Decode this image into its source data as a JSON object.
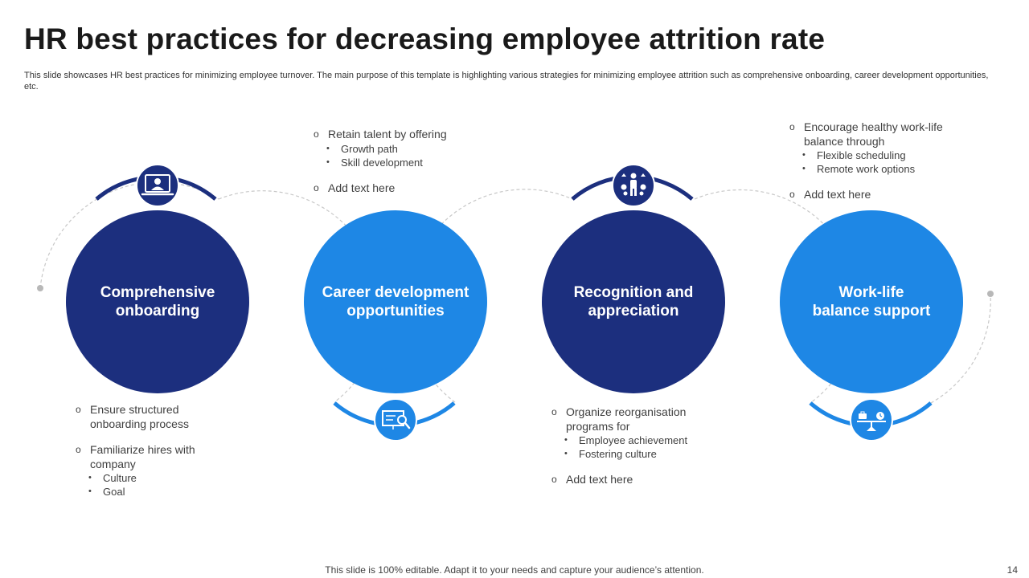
{
  "title": "HR best practices for decreasing employee attrition rate",
  "subtitle": "This slide showcases HR best practices for minimizing employee turnover. The main purpose of this template is highlighting various strategies for minimizing employee attrition such as comprehensive onboarding, career development opportunities, etc.",
  "colors": {
    "dark_navy": "#1c2f7e",
    "bright_blue": "#1e87e5",
    "dashed_line": "#c8c8c8"
  },
  "practices": [
    {
      "label_line1": "Comprehensive",
      "label_line2": "onboarding",
      "icon": "computer-user-icon",
      "notes": [
        {
          "text": "Ensure structured onboarding process",
          "sub": []
        },
        {
          "text": "Familiarize hires with company",
          "sub": [
            "Culture",
            "Goal"
          ]
        }
      ]
    },
    {
      "label_line1": "Career development",
      "label_line2": "opportunities",
      "icon": "presentation-search-icon",
      "notes": [
        {
          "text": "Retain talent by offering",
          "sub": [
            "Growth path",
            "Skill development"
          ]
        },
        {
          "text": "Add text here",
          "sub": []
        }
      ]
    },
    {
      "label_line1": "Recognition and",
      "label_line2": "appreciation",
      "icon": "person-applause-icon",
      "notes": [
        {
          "text": "Organize reorganisation programs for",
          "sub": [
            "Employee achievement",
            "Fostering culture"
          ]
        },
        {
          "text": "Add text here",
          "sub": []
        }
      ]
    },
    {
      "label_line1": "Work-life",
      "label_line2": "balance support",
      "icon": "balance-scale-icon",
      "notes": [
        {
          "text": "Encourage healthy work-life balance through",
          "sub": [
            "Flexible scheduling",
            "Remote work options"
          ]
        },
        {
          "text": "Add text here",
          "sub": []
        }
      ]
    }
  ],
  "footer": "This slide is 100% editable. Adapt it to your needs and capture your audience’s attention.",
  "page_number": "14"
}
